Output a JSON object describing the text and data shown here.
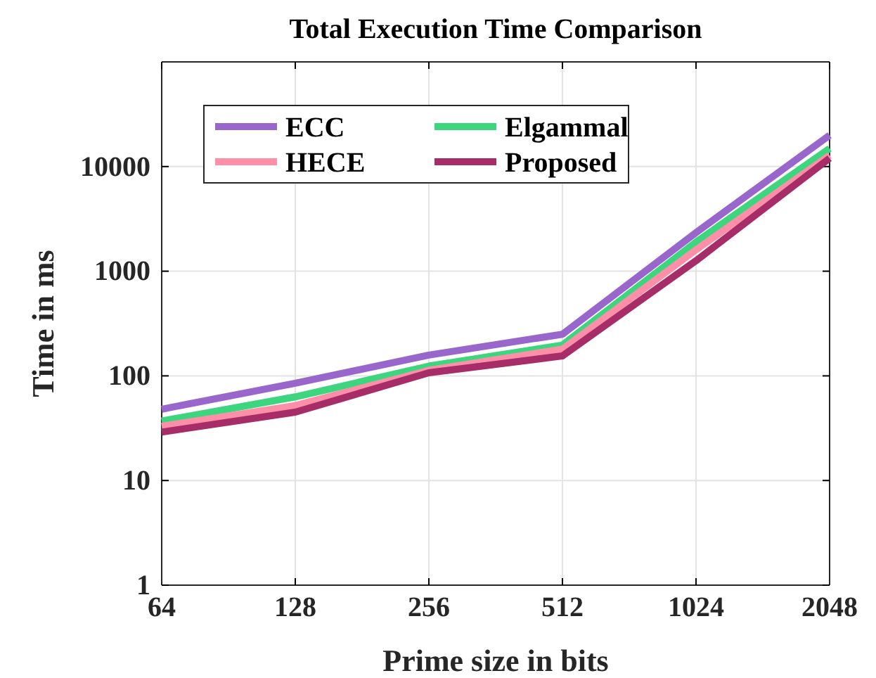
{
  "chart_data": {
    "type": "line",
    "title": "Total Execution Time Comparison",
    "xlabel": "Prime size in bits",
    "ylabel": "Time in ms",
    "categories": [
      "64",
      "128",
      "256",
      "512",
      "1024",
      "2048"
    ],
    "series": [
      {
        "name": "ECC",
        "color": "#9966cc",
        "values": [
          48,
          85,
          158,
          250,
          2340,
          19900
        ]
      },
      {
        "name": "Elgammal",
        "color": "#3dd67f",
        "values": [
          37,
          63,
          124,
          197,
          1900,
          14900
        ]
      },
      {
        "name": "HECE",
        "color": "#ff8fa8",
        "values": [
          33,
          52,
          113,
          180,
          1600,
          12800
        ]
      },
      {
        "name": "Proposed",
        "color": "#a62d67",
        "values": [
          29,
          45,
          107,
          155,
          1260,
          12000
        ]
      }
    ],
    "log": "y",
    "ylim": [
      1,
      100000
    ],
    "yticks": [
      1,
      10,
      100,
      1000,
      10000
    ],
    "grid": true,
    "legend": "top left",
    "line_style": "solid"
  }
}
